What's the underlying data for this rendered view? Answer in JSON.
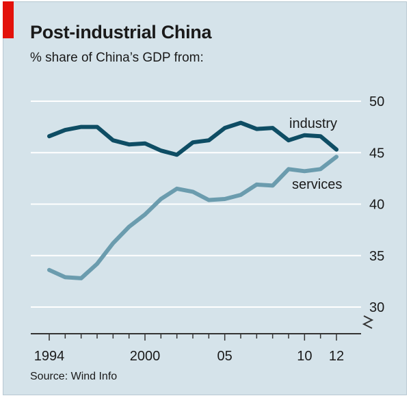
{
  "title": "Post-industrial China",
  "subtitle": "% share of China’s GDP from:",
  "source": "Source: Wind Info",
  "chart_data": {
    "type": "line",
    "x": [
      1994,
      1995,
      1996,
      1997,
      1998,
      1999,
      2000,
      2001,
      2002,
      2003,
      2004,
      2005,
      2006,
      2007,
      2008,
      2009,
      2010,
      2011,
      2012
    ],
    "x_tick_values": [
      1994,
      2000,
      2005,
      2010,
      2012
    ],
    "x_tick_labels": [
      "1994",
      "2000",
      "05",
      "10",
      "12"
    ],
    "y_tick_values": [
      30,
      35,
      40,
      45,
      50
    ],
    "y_tick_labels": [
      "30",
      "35",
      "40",
      "45",
      "50"
    ],
    "ylim": [
      29,
      51
    ],
    "xlim": [
      1993.5,
      2012.6
    ],
    "y_axis_side": "right",
    "y_axis_break": true,
    "grid": "horizontal",
    "series": [
      {
        "name": "industry",
        "color": "#0e4d64",
        "values": [
          46.6,
          47.2,
          47.5,
          47.5,
          46.2,
          45.8,
          45.9,
          45.2,
          44.8,
          46.0,
          46.2,
          47.4,
          47.9,
          47.3,
          47.4,
          46.2,
          46.7,
          46.6,
          45.3
        ]
      },
      {
        "name": "services",
        "color": "#6b9cae",
        "values": [
          33.6,
          32.9,
          32.8,
          34.2,
          36.2,
          37.8,
          39.0,
          40.5,
          41.5,
          41.2,
          40.4,
          40.5,
          40.9,
          41.9,
          41.8,
          43.4,
          43.2,
          43.4,
          44.6
        ]
      }
    ]
  }
}
